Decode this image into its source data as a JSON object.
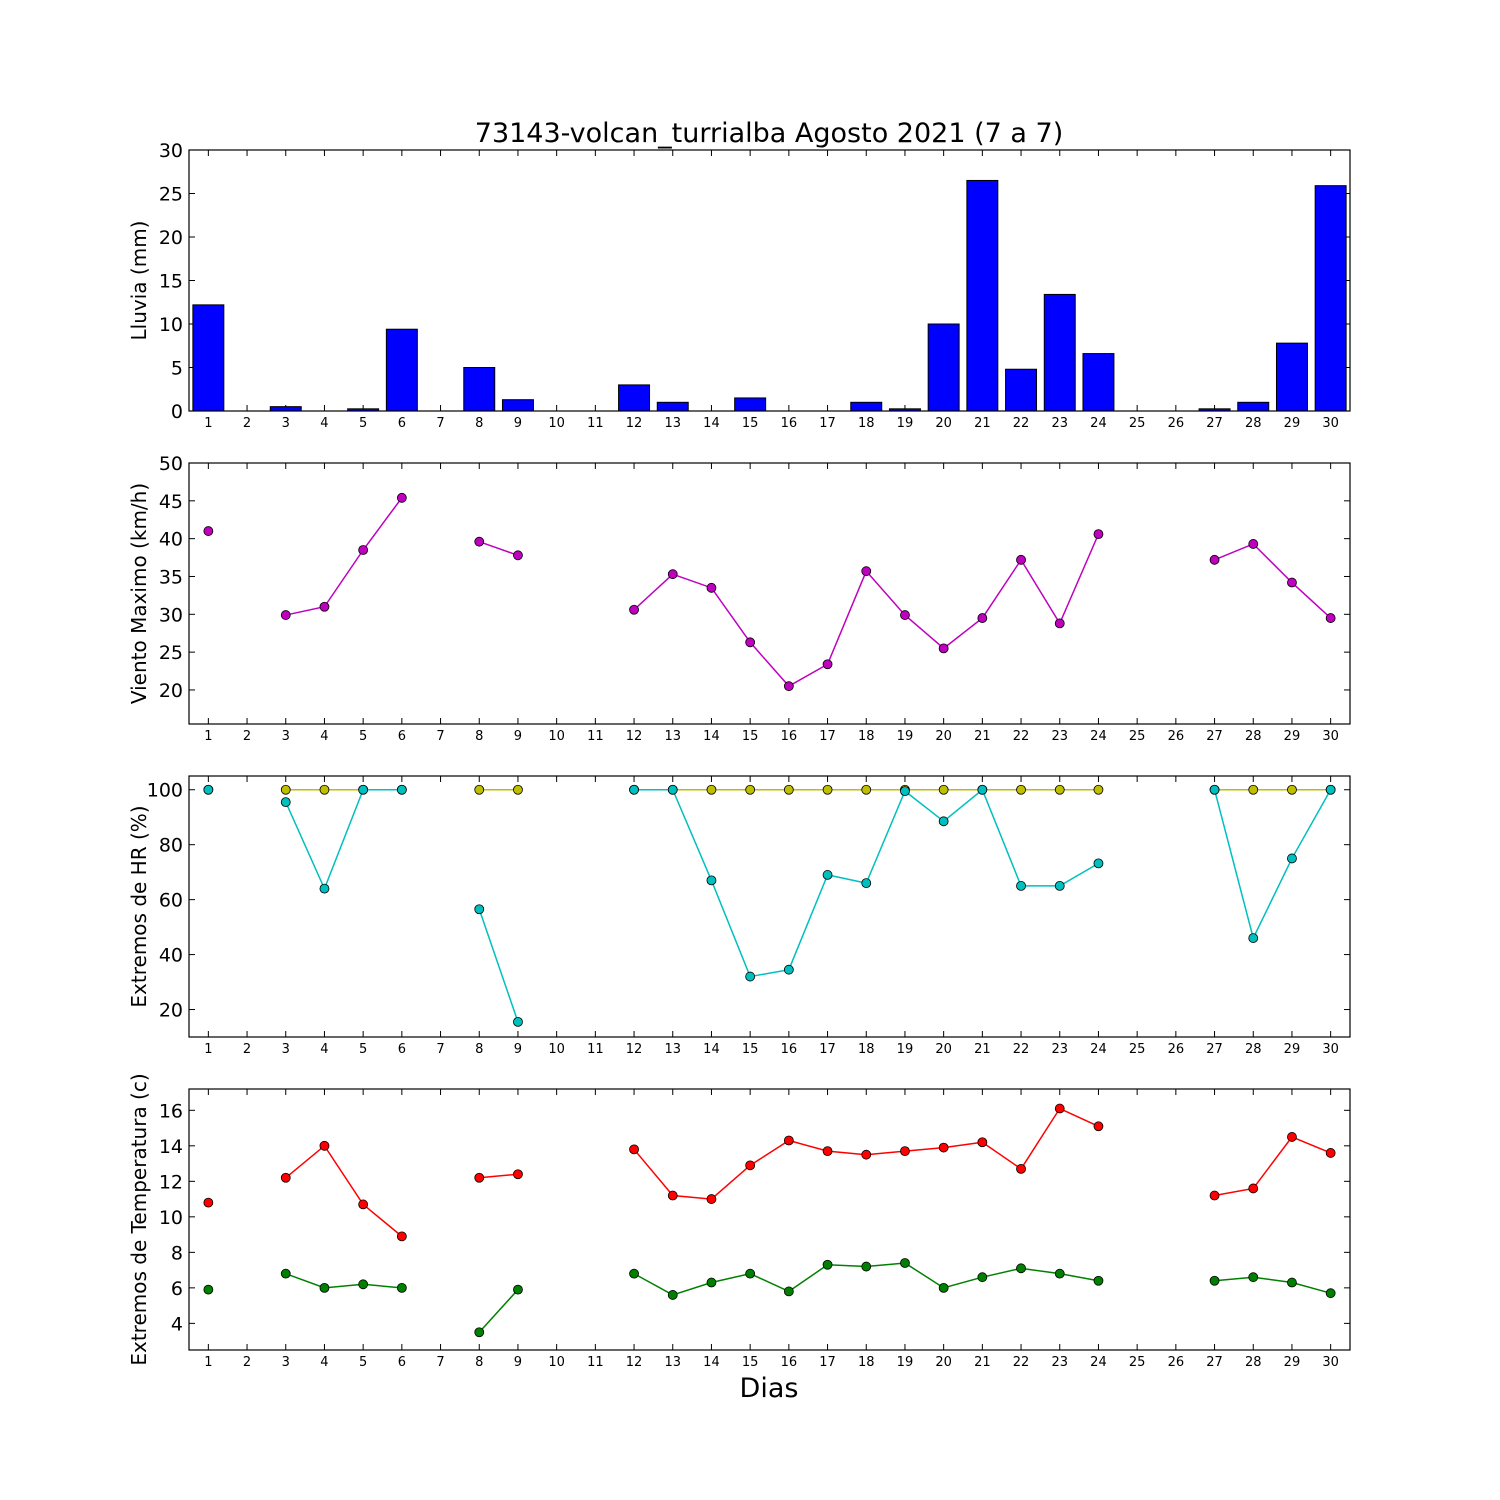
{
  "figure": {
    "title": "73143-volcan_turrialba Agosto 2021  (7 a 7)",
    "xlabel": "Dias"
  },
  "chart_data": [
    {
      "type": "bar",
      "ylabel": "Lluvia (mm)",
      "ylim": [
        0,
        30
      ],
      "yticks": [
        0,
        5,
        10,
        15,
        20,
        25,
        30
      ],
      "x": [
        1,
        2,
        3,
        4,
        5,
        6,
        7,
        8,
        9,
        10,
        11,
        12,
        13,
        14,
        15,
        16,
        17,
        18,
        19,
        20,
        21,
        22,
        23,
        24,
        25,
        26,
        27,
        28,
        29,
        30
      ],
      "series": [
        {
          "color": "#0000ff",
          "values": [
            12.2,
            0,
            0.5,
            0,
            0.25,
            9.4,
            0,
            5.0,
            1.3,
            0,
            0,
            3.0,
            1.0,
            0,
            1.5,
            0,
            0,
            1.0,
            0.25,
            10.0,
            26.5,
            4.8,
            13.4,
            6.6,
            0,
            0,
            0.25,
            1.0,
            7.8,
            25.9
          ]
        }
      ]
    },
    {
      "type": "line",
      "ylabel": "Viento Maximo (km/h)",
      "ylim": [
        15.5,
        50
      ],
      "yticks": [
        20,
        25,
        30,
        35,
        40,
        45,
        50
      ],
      "x": [
        1,
        2,
        3,
        4,
        5,
        6,
        7,
        8,
        9,
        10,
        11,
        12,
        13,
        14,
        15,
        16,
        17,
        18,
        19,
        20,
        21,
        22,
        23,
        24,
        25,
        26,
        27,
        28,
        29,
        30
      ],
      "series": [
        {
          "color": "#bf00bf",
          "values": [
            41.0,
            null,
            29.9,
            31.0,
            38.5,
            45.4,
            null,
            39.6,
            37.8,
            null,
            null,
            30.6,
            35.3,
            33.5,
            26.3,
            20.5,
            23.4,
            35.7,
            29.9,
            25.5,
            29.5,
            37.2,
            28.8,
            40.6,
            null,
            null,
            37.2,
            39.3,
            34.2,
            29.5
          ]
        }
      ]
    },
    {
      "type": "line",
      "ylabel": "Extremos de HR (%)",
      "ylim": [
        10,
        105
      ],
      "yticks": [
        20,
        40,
        60,
        80,
        100
      ],
      "x": [
        1,
        2,
        3,
        4,
        5,
        6,
        7,
        8,
        9,
        10,
        11,
        12,
        13,
        14,
        15,
        16,
        17,
        18,
        19,
        20,
        21,
        22,
        23,
        24,
        25,
        26,
        27,
        28,
        29,
        30
      ],
      "series": [
        {
          "color": "#bfbf00",
          "values": [
            100,
            null,
            100,
            100,
            100,
            100,
            null,
            100,
            100,
            null,
            null,
            100,
            100,
            100,
            100,
            100,
            100,
            100,
            100,
            100,
            100,
            100,
            100,
            100,
            null,
            null,
            100,
            100,
            100,
            100
          ]
        },
        {
          "color": "#00bfbf",
          "values": [
            100,
            null,
            95.5,
            64,
            100,
            100,
            null,
            56.5,
            15.5,
            null,
            null,
            100,
            100,
            67,
            32,
            34.5,
            69,
            66,
            99.5,
            88.5,
            100,
            65,
            65,
            73.2,
            null,
            null,
            100,
            46,
            75,
            100
          ]
        }
      ]
    },
    {
      "type": "line",
      "ylabel": "Extremos de Temperatura (c)",
      "ylim": [
        2.5,
        17.2
      ],
      "yticks": [
        4,
        6,
        8,
        10,
        12,
        14,
        16
      ],
      "x": [
        1,
        2,
        3,
        4,
        5,
        6,
        7,
        8,
        9,
        10,
        11,
        12,
        13,
        14,
        15,
        16,
        17,
        18,
        19,
        20,
        21,
        22,
        23,
        24,
        25,
        26,
        27,
        28,
        29,
        30
      ],
      "series": [
        {
          "color": "#ff0000",
          "values": [
            10.8,
            null,
            12.2,
            14.0,
            10.7,
            8.9,
            null,
            12.2,
            12.4,
            null,
            null,
            13.8,
            11.2,
            11.0,
            12.9,
            14.3,
            13.7,
            13.5,
            13.7,
            13.9,
            14.2,
            12.7,
            16.1,
            15.1,
            null,
            null,
            11.2,
            11.6,
            14.5,
            13.6
          ]
        },
        {
          "color": "#008000",
          "values": [
            5.9,
            null,
            6.8,
            6.0,
            6.2,
            6.0,
            null,
            3.5,
            5.9,
            null,
            null,
            6.8,
            5.6,
            6.3,
            6.8,
            5.8,
            7.3,
            7.2,
            7.4,
            6.0,
            6.6,
            7.1,
            6.8,
            6.4,
            null,
            null,
            6.4,
            6.6,
            6.3,
            5.7
          ]
        }
      ]
    }
  ]
}
